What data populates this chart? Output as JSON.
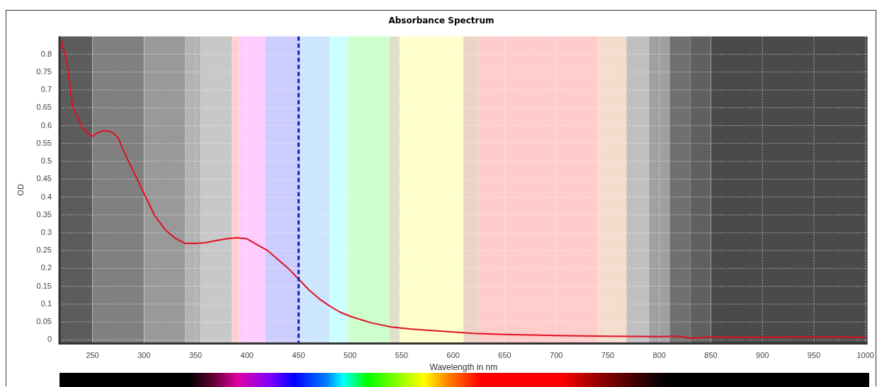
{
  "chart_data": {
    "type": "line",
    "title": "Absorbance Spectrum",
    "xlabel": "Wavelength in nm",
    "ylabel": "OD",
    "x": [
      220,
      221,
      225,
      231,
      236,
      241,
      245,
      250,
      255,
      260,
      265,
      270,
      275,
      280,
      290,
      300,
      310,
      320,
      330,
      340,
      350,
      360,
      370,
      380,
      390,
      400,
      410,
      420,
      430,
      440,
      450,
      460,
      470,
      480,
      490,
      500,
      520,
      540,
      560,
      580,
      600,
      620,
      650,
      700,
      750,
      800,
      820,
      830,
      850,
      900,
      950,
      1000
    ],
    "series": [
      {
        "color": "#e01020",
        "values": [
          0.84,
          0.82,
          0.78,
          0.65,
          0.62,
          0.59,
          0.58,
          0.57,
          0.58,
          0.585,
          0.585,
          0.58,
          0.565,
          0.53,
          0.47,
          0.41,
          0.35,
          0.31,
          0.285,
          0.27,
          0.27,
          0.272,
          0.278,
          0.283,
          0.286,
          0.283,
          0.266,
          0.25,
          0.225,
          0.2,
          0.17,
          0.14,
          0.115,
          0.095,
          0.078,
          0.066,
          0.048,
          0.036,
          0.03,
          0.026,
          0.022,
          0.018,
          0.015,
          0.012,
          0.01,
          0.009,
          0.01,
          0.004,
          0.008,
          0.007,
          0.008,
          0.007
        ]
      }
    ],
    "xlim": [
      218,
      1002
    ],
    "xticks": [
      250,
      300,
      350,
      400,
      450,
      500,
      550,
      600,
      650,
      700,
      750,
      800,
      850,
      900,
      950,
      1000
    ],
    "ylim": [
      -0.01,
      0.85
    ],
    "yticks": [
      0,
      0.05,
      0.1,
      0.15,
      0.2,
      0.25,
      0.3,
      0.35,
      0.4,
      0.45,
      0.5,
      0.55,
      0.6,
      0.65,
      0.7,
      0.75,
      0.8
    ],
    "grid": true,
    "legend": false,
    "marker": "none",
    "line_style": "solid",
    "ref_lines": [
      {
        "axis": "x",
        "value": 450,
        "color": "#0a2aa8",
        "line_style": "dashed"
      }
    ],
    "bands": [
      {
        "axis": "x",
        "from": 218,
        "to": 250,
        "color": "#5c5c5c"
      },
      {
        "axis": "x",
        "from": 250,
        "to": 300,
        "color": "#808080"
      },
      {
        "axis": "x",
        "from": 300,
        "to": 340,
        "color": "#999999"
      },
      {
        "axis": "x",
        "from": 340,
        "to": 355,
        "color": "#b3b3b3"
      },
      {
        "axis": "x",
        "from": 355,
        "to": 385,
        "color": "#c8c8c8"
      },
      {
        "axis": "x",
        "from": 385,
        "to": 392,
        "color": "#ffd0d0"
      },
      {
        "axis": "x",
        "from": 392,
        "to": 418,
        "color": "#ffccff"
      },
      {
        "axis": "x",
        "from": 418,
        "to": 452,
        "color": "#ccccff"
      },
      {
        "axis": "x",
        "from": 452,
        "to": 480,
        "color": "#cce6ff"
      },
      {
        "axis": "x",
        "from": 480,
        "to": 498,
        "color": "#ccffff"
      },
      {
        "axis": "x",
        "from": 498,
        "to": 538,
        "color": "#ccffcc"
      },
      {
        "axis": "x",
        "from": 538,
        "to": 548,
        "color": "#e0e0c8"
      },
      {
        "axis": "x",
        "from": 548,
        "to": 610,
        "color": "#ffffcc"
      },
      {
        "axis": "x",
        "from": 610,
        "to": 625,
        "color": "#eed4c8"
      },
      {
        "axis": "x",
        "from": 625,
        "to": 740,
        "color": "#ffcccc"
      },
      {
        "axis": "x",
        "from": 740,
        "to": 768,
        "color": "#f5dccc"
      },
      {
        "axis": "x",
        "from": 768,
        "to": 790,
        "color": "#c0c0c0"
      },
      {
        "axis": "x",
        "from": 790,
        "to": 810,
        "color": "#a0a0a0"
      },
      {
        "axis": "x",
        "from": 810,
        "to": 830,
        "color": "#707070"
      },
      {
        "axis": "x",
        "from": 830,
        "to": 850,
        "color": "#606060"
      },
      {
        "axis": "x",
        "from": 850,
        "to": 1002,
        "color": "#4a4a4a"
      }
    ]
  }
}
